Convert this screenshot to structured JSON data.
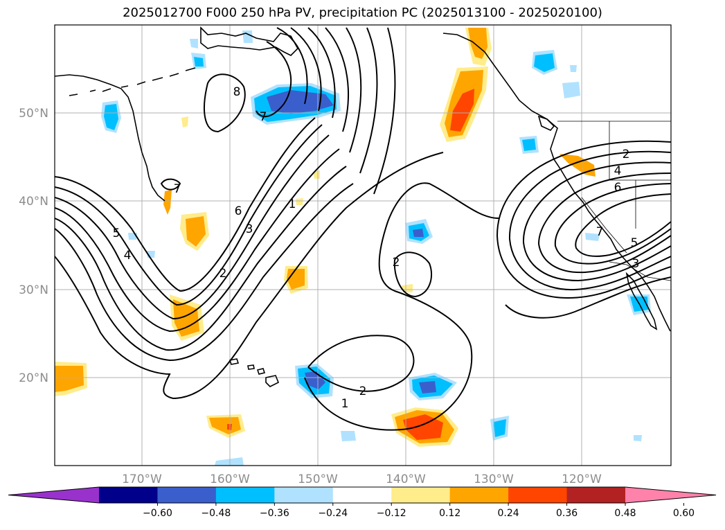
{
  "title": "2025012700 F000 250 hPa PV, precipitation PC (2025013100 - 2025020100)",
  "map": {
    "lat_labels": [
      {
        "text": "50°N",
        "lat": 50
      },
      {
        "text": "40°N",
        "lat": 40
      },
      {
        "text": "30°N",
        "lat": 30
      },
      {
        "text": "20°N",
        "lat": 20
      }
    ],
    "lon_labels": [
      {
        "text": "170°W",
        "lon": -170
      },
      {
        "text": "160°W",
        "lon": -160
      },
      {
        "text": "150°W",
        "lon": -150
      },
      {
        "text": "140°W",
        "lon": -140
      },
      {
        "text": "130°W",
        "lon": -130
      },
      {
        "text": "120°W",
        "lon": -120
      }
    ],
    "grid": true,
    "pv_contour_labels": [
      "8",
      "7",
      "7",
      "6",
      "5",
      "4",
      "3",
      "2",
      "1",
      "2",
      "2",
      "1",
      "2",
      "4",
      "6",
      "7",
      "5",
      "3"
    ]
  },
  "colorbar": {
    "colors": [
      "#9932cc",
      "#00008b",
      "#3a5fcd",
      "#00bfff",
      "#b0e2ff",
      "#ffffff",
      "#ffec8b",
      "#ffa500",
      "#ff4500",
      "#b22222",
      "#ff82ab"
    ],
    "tick_labels": [
      "−0.60",
      "−0.48",
      "−0.36",
      "−0.24",
      "−0.12",
      "0.12",
      "0.24",
      "0.36",
      "0.48",
      "0.60"
    ],
    "extend": "both"
  }
}
